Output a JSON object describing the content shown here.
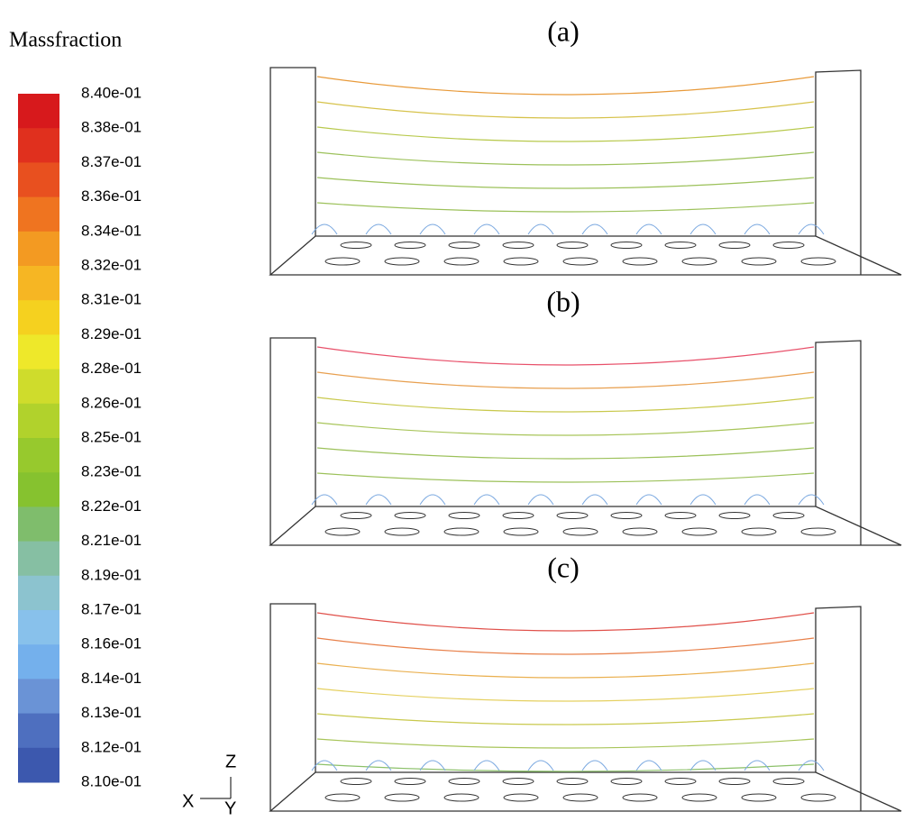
{
  "legend": {
    "title": "Massfraction",
    "labels": [
      "8.40e-01",
      "8.38e-01",
      "8.37e-01",
      "8.36e-01",
      "8.34e-01",
      "8.32e-01",
      "8.31e-01",
      "8.29e-01",
      "8.28e-01",
      "8.26e-01",
      "8.25e-01",
      "8.23e-01",
      "8.22e-01",
      "8.21e-01",
      "8.19e-01",
      "8.17e-01",
      "8.16e-01",
      "8.14e-01",
      "8.13e-01",
      "8.12e-01",
      "8.10e-01"
    ],
    "colors": [
      "#d7191c",
      "#e0301e",
      "#e8501f",
      "#ef7420",
      "#f39a22",
      "#f6b623",
      "#f5d11f",
      "#eee82a",
      "#cfdc2c",
      "#b1d22c",
      "#97c92d",
      "#86c22f",
      "#7fbd6c",
      "#86bfa3",
      "#8cc3cf",
      "#88c1eb",
      "#74b0ec",
      "#6a93d6",
      "#4e6fbf",
      "#3c58ae",
      "#2f4aa3"
    ]
  },
  "panels": [
    {
      "label": "(a)"
    },
    {
      "label": "(b)"
    },
    {
      "label": "(c)"
    }
  ],
  "axes": {
    "z": "Z",
    "x": "X",
    "y": "Y"
  }
}
